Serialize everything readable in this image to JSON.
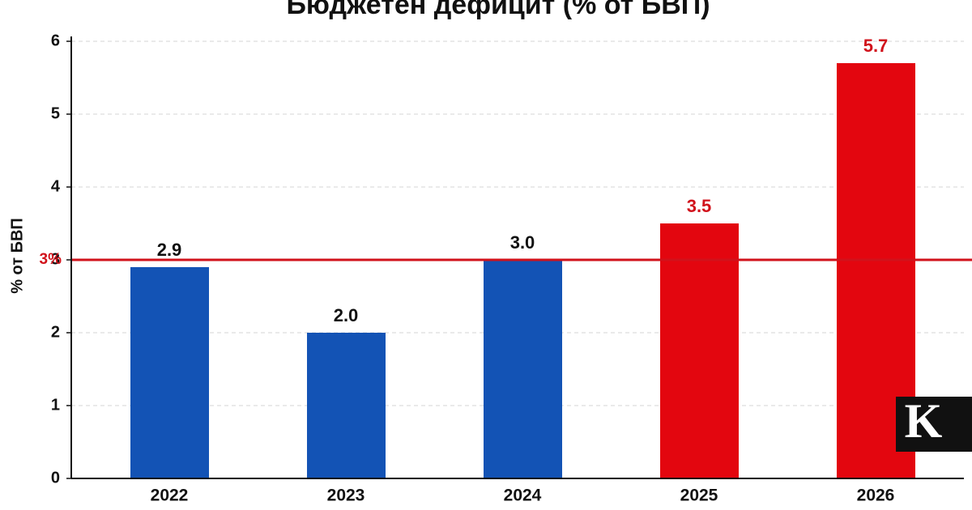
{
  "chart_data": {
    "type": "bar",
    "title": "Бюджетен дефицит (% от БВП)",
    "y_label": "% от БВП",
    "categories": [
      "2022",
      "2023",
      "2024",
      "2025",
      "2026"
    ],
    "values": [
      2.9,
      2.0,
      3.0,
      3.5,
      5.7
    ],
    "value_labels": [
      "2.9",
      "2.0",
      "3.0",
      "3.5",
      "5.7"
    ],
    "colors": [
      "#1353b5",
      "#1353b5",
      "#1353b5",
      "#e3060f",
      "#e3060f"
    ],
    "label_colors": [
      "#111111",
      "#111111",
      "#111111",
      "#d1121b",
      "#d1121b"
    ],
    "ylim": [
      0,
      6
    ],
    "yticks": [
      0,
      1,
      2,
      3,
      4,
      5,
      6
    ],
    "grid": true,
    "reference_line": {
      "value": 3,
      "label": "3%",
      "color": "#d1121b"
    }
  },
  "logo": "K"
}
